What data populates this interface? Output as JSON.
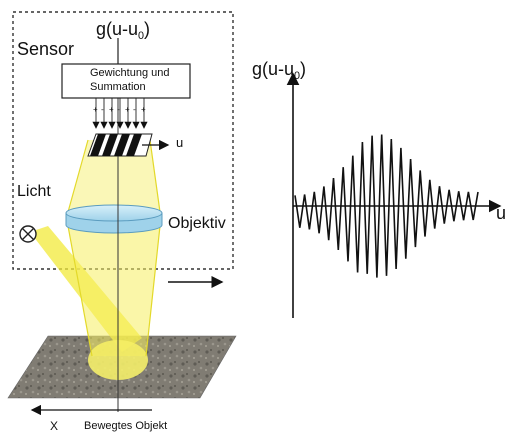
{
  "labels": {
    "sensor": "Sensor",
    "formula_top_main": "g(u-u",
    "formula_top_sub": "0",
    "formula_top_close": ")",
    "box_line1": "Gewichtung und",
    "box_line2": "Summation",
    "u_axis_small": "u",
    "licht": "Licht",
    "objektiv": "Objektiv",
    "x_axis": "X",
    "object_label": "Bewegtes Objekt",
    "plot_y_main": "g(u-u",
    "plot_y_sub": "0",
    "plot_y_close": ")",
    "plot_x": "u"
  },
  "colors": {
    "light_beam": "#f2ea3a",
    "lens_fill": "#bfe3f2",
    "surface": "#7d7a72",
    "dashed_frame": "#333333"
  },
  "icons": {
    "light_source": "circle-x-icon",
    "arrows": "arrow-icon"
  }
}
